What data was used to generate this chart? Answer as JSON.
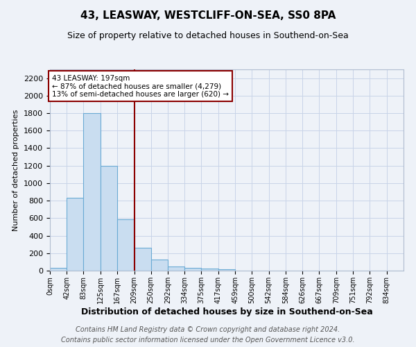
{
  "title": "43, LEASWAY, WESTCLIFF-ON-SEA, SS0 8PA",
  "subtitle": "Size of property relative to detached houses in Southend-on-Sea",
  "xlabel": "Distribution of detached houses by size in Southend-on-Sea",
  "ylabel": "Number of detached properties",
  "footnote1": "Contains HM Land Registry data © Crown copyright and database right 2024.",
  "footnote2": "Contains public sector information licensed under the Open Government Licence v3.0.",
  "annotation_line1": "43 LEASWAY: 197sqm",
  "annotation_line2": "← 87% of detached houses are smaller (4,279)",
  "annotation_line3": "13% of semi-detached houses are larger (620) →",
  "property_size": 197,
  "bar_labels": [
    "0sqm",
    "42sqm",
    "83sqm",
    "125sqm",
    "167sqm",
    "209sqm",
    "250sqm",
    "292sqm",
    "334sqm",
    "375sqm",
    "417sqm",
    "459sqm",
    "500sqm",
    "542sqm",
    "584sqm",
    "626sqm",
    "667sqm",
    "709sqm",
    "751sqm",
    "792sqm",
    "834sqm"
  ],
  "bar_values": [
    30,
    830,
    1800,
    1200,
    590,
    260,
    130,
    45,
    35,
    20,
    15,
    0,
    0,
    0,
    0,
    0,
    0,
    0,
    0,
    0,
    0
  ],
  "bin_edges": [
    0,
    42,
    83,
    125,
    167,
    209,
    250,
    292,
    334,
    375,
    417,
    459,
    500,
    542,
    584,
    626,
    667,
    709,
    751,
    792,
    834,
    876
  ],
  "ylim": [
    0,
    2300
  ],
  "yticks": [
    0,
    200,
    400,
    600,
    800,
    1000,
    1200,
    1400,
    1600,
    1800,
    2000,
    2200
  ],
  "bar_face_color": "#c9ddf0",
  "bar_edge_color": "#6aaad4",
  "vline_color": "#8b0000",
  "vline_x": 209,
  "annotation_box_color": "#8b0000",
  "grid_color": "#c8d4e8",
  "bg_color": "#eef2f8",
  "axes_bg_color": "#eef2f8",
  "title_fontsize": 11,
  "subtitle_fontsize": 9,
  "xlabel_fontsize": 9,
  "ylabel_fontsize": 8,
  "footnote_fontsize": 7
}
